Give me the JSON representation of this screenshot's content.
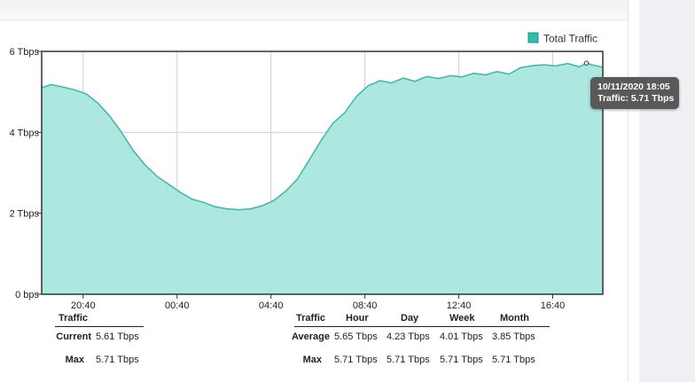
{
  "chart_data": {
    "type": "area",
    "legend": {
      "label": "Total Traffic",
      "placement": "top-right"
    },
    "colors": {
      "fill": "#a8e6de",
      "line": "#3fb5a6",
      "legend_swatch": "#2fbfae",
      "grid": "#cfcfcf"
    },
    "grid": true,
    "y_ticks": [
      "0 bps",
      "2 Tbps",
      "4 Tbps",
      "6 Tbps"
    ],
    "ylim": [
      0,
      6
    ],
    "x_ticks": [
      "20:40",
      "00:40",
      "04:40",
      "08:40",
      "12:40",
      "16:40"
    ],
    "x_tick_hours": [
      20.667,
      24.667,
      28.667,
      32.667,
      36.667,
      40.667
    ],
    "xlim_hours": [
      18.9,
      42.8
    ],
    "series": [
      {
        "name": "Total Traffic",
        "x_hours": [
          18.9,
          19.3,
          19.8,
          20.3,
          20.8,
          21.3,
          21.8,
          22.3,
          22.8,
          23.3,
          23.8,
          24.3,
          24.8,
          25.3,
          25.8,
          26.3,
          26.8,
          27.3,
          27.8,
          28.3,
          28.8,
          29.3,
          29.8,
          30.3,
          30.8,
          31.3,
          31.8,
          32.3,
          32.8,
          33.1,
          33.3,
          33.8,
          34.3,
          34.8,
          35.3,
          35.8,
          36.3,
          36.8,
          37.3,
          37.8,
          38.3,
          38.8,
          39.3,
          39.8,
          40.3,
          40.8,
          41.3,
          41.8,
          42.1,
          42.4,
          42.8
        ],
        "y_tbps": [
          5.1,
          5.18,
          5.12,
          5.05,
          4.95,
          4.72,
          4.4,
          4.0,
          3.55,
          3.2,
          2.92,
          2.72,
          2.52,
          2.35,
          2.27,
          2.16,
          2.11,
          2.09,
          2.11,
          2.19,
          2.32,
          2.55,
          2.85,
          3.32,
          3.8,
          4.22,
          4.48,
          4.88,
          5.15,
          5.22,
          5.28,
          5.22,
          5.34,
          5.26,
          5.38,
          5.33,
          5.4,
          5.37,
          5.46,
          5.42,
          5.5,
          5.44,
          5.6,
          5.65,
          5.67,
          5.64,
          5.7,
          5.62,
          5.71,
          5.66,
          5.61
        ]
      }
    ],
    "highlight_index": 48
  },
  "tooltip": {
    "line1": "10/11/2020 18:05",
    "line2": "Traffic: 5.71 Tbps"
  },
  "stats_left": {
    "header": "Traffic",
    "rows": [
      {
        "label": "Current",
        "value": "5.61 Tbps"
      },
      {
        "label": "Max",
        "value": "5.71 Tbps"
      }
    ]
  },
  "stats_right": {
    "headers": [
      "Traffic",
      "Hour",
      "Day",
      "Week",
      "Month"
    ],
    "rows": [
      {
        "label": "Average",
        "values": [
          "5.65 Tbps",
          "4.23 Tbps",
          "4.01 Tbps",
          "3.85 Tbps"
        ]
      },
      {
        "label": "Max",
        "values": [
          "5.71 Tbps",
          "5.71 Tbps",
          "5.71 Tbps",
          "5.71 Tbps"
        ]
      }
    ]
  }
}
